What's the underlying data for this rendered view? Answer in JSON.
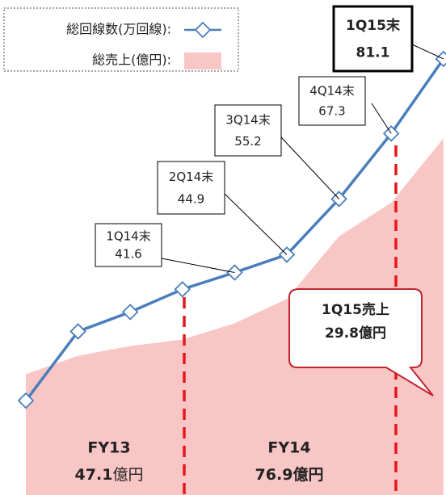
{
  "chart_data": {
    "type": "line",
    "series": [
      {
        "name": "総回線数(万回線):",
        "color": "#4a7ebb",
        "values": [
          17.9,
          30.7,
          34.3,
          38.5,
          41.6,
          44.9,
          55.2,
          67.3,
          81.1
        ],
        "point_labels": [
          null,
          null,
          null,
          null,
          "1Q14末",
          "2Q14末",
          "3Q14末",
          "4Q14末",
          "1Q15末"
        ]
      },
      {
        "name": "総売上(億円):",
        "type": "area",
        "color": "#f9c6c6",
        "values": [
          22.8,
          26.2,
          28.0,
          29.2,
          32.2,
          36.7,
          48.3,
          54.5,
          66.4
        ]
      }
    ],
    "ylim": [
      0,
      92
    ],
    "annotations": [
      {
        "text": "FY13",
        "value": 47.1,
        "unit": "億円"
      },
      {
        "text": "FY14",
        "value": 76.9,
        "unit": "億円"
      }
    ],
    "callout": {
      "text": "1Q15売上",
      "value": 29.8,
      "unit": "億円"
    }
  }
}
